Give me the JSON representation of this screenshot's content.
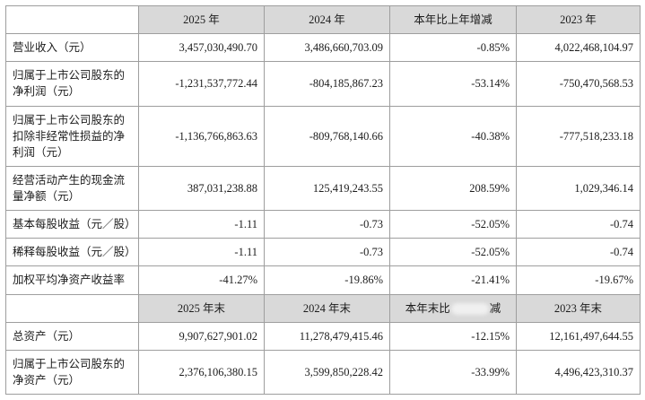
{
  "table": {
    "header1": [
      "",
      "2025 年",
      "2024 年",
      "本年比上年增减",
      "2023 年"
    ],
    "rows": [
      {
        "label": "营业收入（元）",
        "values": [
          "3,457,030,490.70",
          "3,486,660,703.09",
          "-0.85%",
          "4,022,468,104.97"
        ]
      },
      {
        "label": "归属于上市公司股东的净利润（元）",
        "values": [
          "-1,231,537,772.44",
          "-804,185,867.23",
          "-53.14%",
          "-750,470,568.53"
        ]
      },
      {
        "label": "归属于上市公司股东的扣除非经常性损益的净利润（元）",
        "values": [
          "-1,136,766,863.63",
          "-809,768,140.66",
          "-40.38%",
          "-777,518,233.18"
        ]
      },
      {
        "label": "经营活动产生的现金流量净额（元）",
        "values": [
          "387,031,238.88",
          "125,419,243.55",
          "208.59%",
          "1,029,346.14"
        ]
      },
      {
        "label": "基本每股收益（元／股）",
        "values": [
          "-1.11",
          "-0.73",
          "-52.05%",
          "-0.74"
        ]
      },
      {
        "label": "稀释每股收益（元／股）",
        "values": [
          "-1.11",
          "-0.73",
          "-52.05%",
          "-0.74"
        ]
      },
      {
        "label": "加权平均净资产收益率",
        "values": [
          "-41.27%",
          "-19.86%",
          "-21.41%",
          "-19.67%"
        ]
      }
    ],
    "header2": {
      "c1": "2025 年末",
      "c2": "2024 年末",
      "c3_prefix": "本年末比",
      "c3_suffix": "减",
      "c4": "2023 年末"
    },
    "rows2": [
      {
        "label": "总资产（元）",
        "values": [
          "9,907,627,901.02",
          "11,278,479,415.46",
          "-12.15%",
          "12,161,497,644.55"
        ]
      },
      {
        "label": "归属于上市公司股东的净资产（元）",
        "values": [
          "2,376,106,380.15",
          "3,599,850,228.42",
          "-33.99%",
          "4,496,423,310.37"
        ]
      }
    ]
  }
}
